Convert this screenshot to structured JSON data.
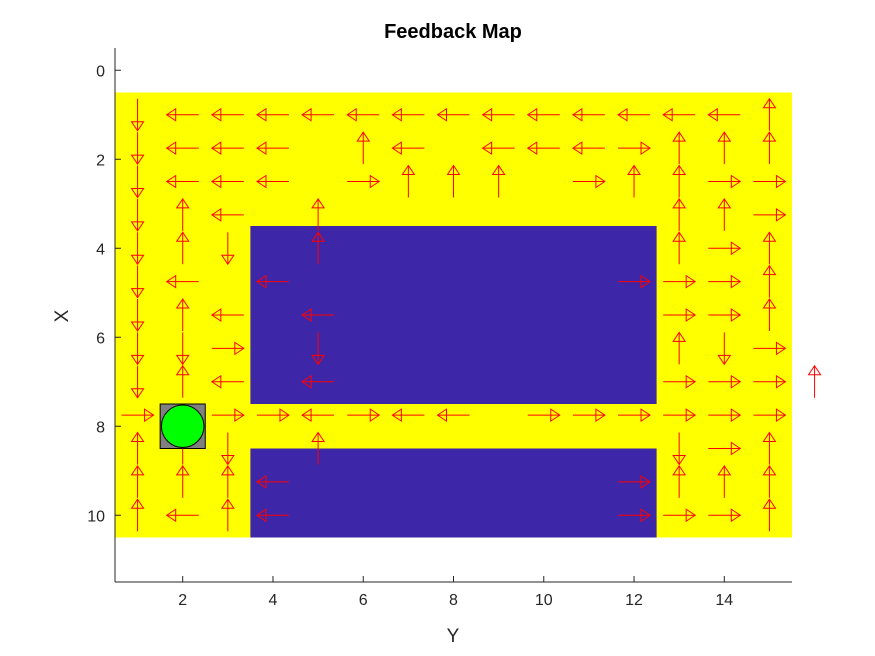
{
  "chart_data": {
    "type": "heatmap",
    "title": "Feedback Map",
    "xlabel": "Y",
    "ylabel": "X",
    "xlim": [
      0.5,
      15.5
    ],
    "ylim": [
      -0.5,
      11.5
    ],
    "y_reversed": true,
    "xticks": [
      "2",
      "4",
      "6",
      "8",
      "10",
      "12",
      "14"
    ],
    "yticks": [
      "0",
      "2",
      "4",
      "6",
      "8",
      "10"
    ],
    "colors": {
      "free": "#FFFF00",
      "obstacle": "#3D26A8",
      "arrow": "#FF0000",
      "start": "#808080",
      "goal": "#00FF00"
    },
    "obstacles": [
      {
        "x": [
          3.5,
          12.5
        ],
        "y": [
          3.5,
          7.5
        ]
      },
      {
        "x": [
          3.5,
          12.5
        ],
        "y": [
          8.5,
          10.5
        ]
      }
    ],
    "free_region": {
      "x": [
        0.5,
        15.5
      ],
      "y": [
        0.5,
        10.5
      ]
    },
    "start": {
      "x": 2,
      "y": 8
    },
    "goal": {
      "x": 2,
      "y": 8
    },
    "policy_rows": [
      "DLLLLLLLLLLLLLU",
      "DLLL UL LLLRUUU",
      "DLLL RUUU RUURR",
      "DUL U       UUR",
      "DUD U       URU",
      "DL L       RRRU",
      "DUL L       RRU",
      "DDR D       UDR",
      "DUL L       RRRU",
      "RRRRLRLL RRRRRR",
      "UUD U       DRU",
      "UUUL       RUUU",
      "ULUL       RRRU"
    ]
  }
}
